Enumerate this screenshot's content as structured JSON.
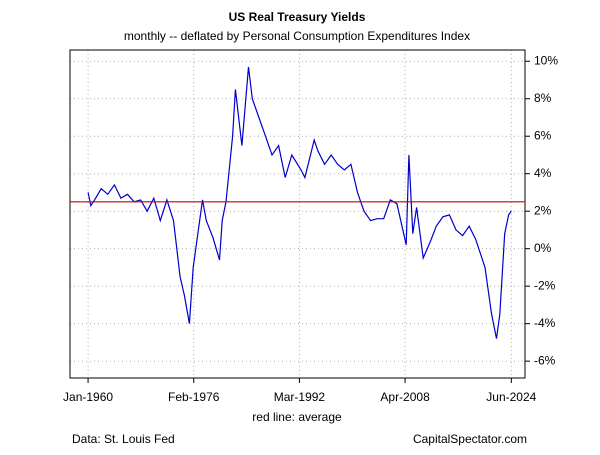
{
  "chart_data": {
    "type": "line",
    "title": "US Real Treasury Yields",
    "subtitle": "monthly -- deflated by Personal Consumption Expenditures Index",
    "x_label": "red line: average",
    "source": "Data: St. Louis Fed",
    "credit": "CapitalSpectator.com",
    "x": [
      "1960-01",
      "1960-06",
      "1961-01",
      "1962-01",
      "1963-01",
      "1964-01",
      "1965-01",
      "1966-01",
      "1967-01",
      "1968-01",
      "1969-01",
      "1970-01",
      "1971-01",
      "1972-01",
      "1973-01",
      "1974-01",
      "1974-09",
      "1975-06",
      "1976-01",
      "1977-06",
      "1978-01",
      "1979-01",
      "1980-01",
      "1980-06",
      "1981-01",
      "1982-01",
      "1982-06",
      "1983-06",
      "1984-06",
      "1985-01",
      "1986-01",
      "1987-01",
      "1988-01",
      "1989-01",
      "1990-01",
      "1991-01",
      "1992-06",
      "1993-01",
      "1994-06",
      "1995-01",
      "1996-01",
      "1997-01",
      "1998-01",
      "1999-01",
      "2000-01",
      "2001-01",
      "2002-01",
      "2003-01",
      "2004-01",
      "2005-01",
      "2006-01",
      "2007-01",
      "2008-06",
      "2008-11",
      "2009-06",
      "2010-01",
      "2011-01",
      "2012-01",
      "2013-01",
      "2014-01",
      "2015-01",
      "2016-01",
      "2017-01",
      "2018-01",
      "2019-01",
      "2020-06",
      "2021-06",
      "2022-03",
      "2022-09",
      "2023-06",
      "2024-01",
      "2024-06"
    ],
    "series": [
      {
        "name": "US Real Treasury Yields",
        "color": "#0000cc",
        "values": [
          3.0,
          2.3,
          2.6,
          3.2,
          2.9,
          3.4,
          2.7,
          2.9,
          2.5,
          2.6,
          2.0,
          2.7,
          1.5,
          2.6,
          1.5,
          -1.5,
          -2.5,
          -4.0,
          -1.0,
          2.6,
          1.5,
          0.6,
          -0.6,
          1.5,
          2.5,
          6.0,
          8.5,
          5.5,
          9.7,
          8.0,
          7.0,
          6.0,
          5.0,
          5.5,
          3.8,
          5.0,
          4.2,
          3.8,
          5.8,
          5.2,
          4.5,
          5.0,
          4.5,
          4.2,
          4.5,
          3.0,
          2.0,
          1.5,
          1.6,
          1.6,
          2.6,
          2.4,
          0.2,
          5.0,
          0.8,
          2.2,
          -0.5,
          0.3,
          1.2,
          1.7,
          1.8,
          1.0,
          0.7,
          1.2,
          0.5,
          -1.0,
          -3.5,
          -4.8,
          -3.5,
          0.8,
          1.8,
          2.0
        ]
      }
    ],
    "reference_line": {
      "value": 2.5,
      "color": "#cc0000"
    },
    "xlim": [
      "1957-04",
      "2026-07"
    ],
    "xticks": [
      {
        "value": "1960-01",
        "label": "Jan-1960"
      },
      {
        "value": "1976-02",
        "label": "Feb-1976"
      },
      {
        "value": "1992-03",
        "label": "Mar-1992"
      },
      {
        "value": "2008-04",
        "label": "Apr-2008"
      },
      {
        "value": "2024-06",
        "label": "Jun-2024"
      }
    ],
    "ylim": [
      -6.9,
      10.6
    ],
    "yticks": [
      {
        "value": -6,
        "label": "-6%"
      },
      {
        "value": -4,
        "label": "-4%"
      },
      {
        "value": -2,
        "label": "-2%"
      },
      {
        "value": 0,
        "label": "0%"
      },
      {
        "value": 2,
        "label": "2%"
      },
      {
        "value": 4,
        "label": "4%"
      },
      {
        "value": 6,
        "label": "6%"
      },
      {
        "value": 8,
        "label": "8%"
      },
      {
        "value": 10,
        "label": "10%"
      }
    ],
    "grid": true
  }
}
